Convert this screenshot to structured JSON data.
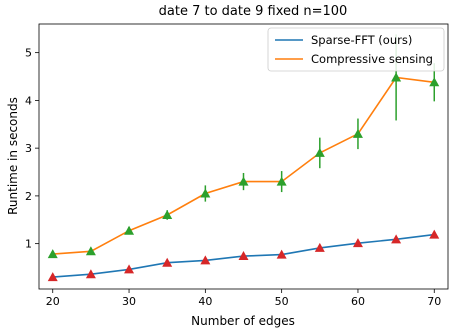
{
  "chart_data": {
    "type": "line",
    "title": "date 7 to date 9 fixed n=100",
    "xlabel": "Number of edges",
    "ylabel": "Runtime in seconds",
    "xlim": [
      18.2,
      71.8
    ],
    "ylim": [
      0.05,
      5.6
    ],
    "xticks": [
      20,
      30,
      40,
      50,
      60,
      70
    ],
    "yticks": [
      1,
      2,
      3,
      4,
      5
    ],
    "grid": false,
    "legend_position": "top-right",
    "x": [
      20,
      25,
      30,
      35,
      40,
      45,
      50,
      55,
      60,
      65,
      70
    ],
    "series": [
      {
        "name": "Sparse-FFT (ours)",
        "color": "#1f77b4",
        "marker_color": "#d62728",
        "marker": "triangle",
        "values": [
          0.3,
          0.36,
          0.46,
          0.6,
          0.65,
          0.74,
          0.77,
          0.91,
          1.01,
          1.09,
          1.19
        ],
        "errors": [
          0.02,
          0.02,
          0.02,
          0.03,
          0.03,
          0.03,
          0.03,
          0.03,
          0.03,
          0.03,
          0.03
        ]
      },
      {
        "name": "Compressive sensing",
        "color": "#ff7f0e",
        "marker_color": "#2ca02c",
        "marker": "triangle",
        "values": [
          0.78,
          0.84,
          1.27,
          1.6,
          2.05,
          2.3,
          2.3,
          2.9,
          3.3,
          4.48,
          4.38
        ],
        "errors": [
          0.05,
          0.05,
          0.08,
          0.1,
          0.17,
          0.18,
          0.22,
          0.32,
          0.32,
          0.9,
          0.4
        ]
      }
    ]
  }
}
